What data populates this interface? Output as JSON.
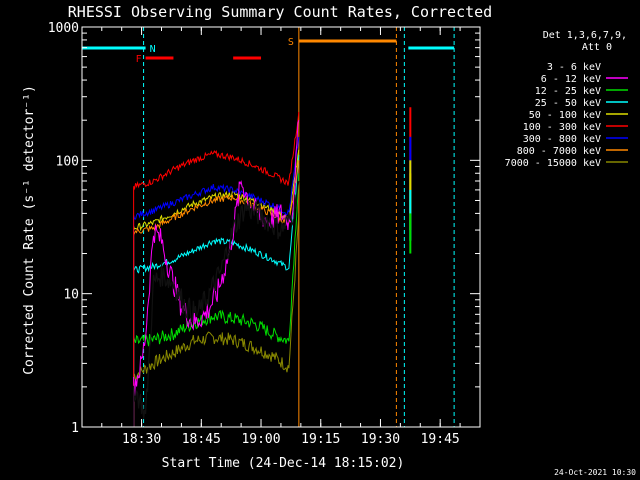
{
  "colors": {
    "bg": "#000000",
    "axis": "#ffffff",
    "band_3_6": "#000000",
    "band_6_12": "#ff00ff",
    "band_12_25": "#00dd00",
    "band_25_50": "#00ffff",
    "band_50_100": "#dddd00",
    "band_100_300": "#ff0000",
    "band_300_800": "#0000ff",
    "band_800_7000": "#ff8800",
    "band_7000_15000": "#888800"
  },
  "chart_data": {
    "type": "line",
    "title": "RHESSI Observing Summary Count Rates, Corrected",
    "xlabel": "Start Time (24-Dec-14 18:15:02)",
    "ylabel": "Corrected Count Rate (s⁻¹ detector⁻¹)",
    "y_scale": "log",
    "ylim": [
      1,
      1000
    ],
    "x_range": [
      "18:15:02",
      "19:55:00"
    ],
    "x_ticks": [
      "18:30",
      "18:45",
      "19:00",
      "19:15",
      "19:30",
      "19:45"
    ],
    "y_ticks": [
      "1",
      "10",
      "100",
      "1000"
    ],
    "legend": {
      "placement": "right",
      "header_lines": [
        "Det 1,3,6,7,9,",
        "Att 0"
      ]
    },
    "flag_markers": [
      {
        "label": "N",
        "color": "#00ffff",
        "spans": [
          [
            "18:15:02",
            "18:31:00"
          ],
          [
            "19:37:00",
            "19:48:30"
          ]
        ]
      },
      {
        "label": "F",
        "color": "#ff0000",
        "spans": [
          [
            "18:31:00",
            "18:38:00"
          ],
          [
            "18:53:00",
            "19:00:00"
          ]
        ]
      },
      {
        "label": "S",
        "color": "#ff8800",
        "spans": [
          [
            "19:09:30",
            "19:34:00"
          ]
        ]
      }
    ],
    "vlines": [
      {
        "time": "18:15:02",
        "color": "#00ffff",
        "style": "solid"
      },
      {
        "time": "18:30:30",
        "color": "#00ffff",
        "style": "dashed"
      },
      {
        "time": "19:09:30",
        "color": "#ff8800",
        "style": "solid"
      },
      {
        "time": "19:34:00",
        "color": "#ff8800",
        "style": "dashed"
      },
      {
        "time": "19:36:00",
        "color": "#00ffff",
        "style": "dashed"
      },
      {
        "time": "19:48:30",
        "color": "#00ffff",
        "style": "dashed"
      }
    ],
    "series": [
      {
        "name": "3 - 6 keV",
        "key": "band_3_6",
        "x": [
          "18:28:00",
          "18:30:00",
          "18:31:00",
          "18:33:00",
          "18:35:00",
          "18:38:00",
          "18:41:00",
          "18:44:00",
          "18:47:00",
          "18:50:00",
          "18:53:00",
          "18:56:00",
          "18:59:00",
          "19:02:00",
          "19:05:00",
          "19:07:00",
          "19:08:00",
          "19:09:30"
        ],
        "y": [
          2,
          1.5,
          1.2,
          12,
          14,
          12,
          8,
          7,
          10,
          15,
          30,
          45,
          40,
          35,
          30,
          35,
          40,
          70
        ]
      },
      {
        "name": "6 - 12 keV",
        "key": "band_6_12",
        "x": [
          "18:28:00",
          "18:30:00",
          "18:31:00",
          "18:33:00",
          "18:35:00",
          "18:37:00",
          "18:40:00",
          "18:43:00",
          "18:46:00",
          "18:49:00",
          "18:52:00",
          "18:55:00",
          "18:57:00",
          "18:59:00",
          "19:02:00",
          "19:05:00",
          "19:07:00",
          "19:08:00",
          "19:09:30"
        ],
        "y": [
          2,
          3,
          5,
          30,
          25,
          15,
          8,
          6,
          7,
          10,
          20,
          70,
          50,
          40,
          35,
          40,
          35,
          45,
          200
        ]
      },
      {
        "name": "12 - 25 keV",
        "key": "band_12_25",
        "x": [
          "18:28:00",
          "18:33:00",
          "18:38:00",
          "18:43:00",
          "18:48:00",
          "18:53:00",
          "18:58:00",
          "19:03:00",
          "19:07:00",
          "19:09:30"
        ],
        "y": [
          4.3,
          4.5,
          5,
          6,
          6.8,
          6.5,
          6,
          5,
          4.4,
          80
        ]
      },
      {
        "name": "25 - 50 keV",
        "key": "band_25_50",
        "x": [
          "18:28:00",
          "18:33:00",
          "18:38:00",
          "18:43:00",
          "18:48:00",
          "18:53:00",
          "18:58:00",
          "19:03:00",
          "19:07:00",
          "19:09:30"
        ],
        "y": [
          15,
          16,
          18,
          21,
          25,
          24,
          21,
          18,
          15.5,
          110
        ]
      },
      {
        "name": "50 - 100 keV",
        "key": "band_50_100",
        "x": [
          "18:28:00",
          "18:33:00",
          "18:38:00",
          "18:43:00",
          "18:48:00",
          "18:53:00",
          "18:58:00",
          "19:03:00",
          "19:07:00",
          "19:09:30"
        ],
        "y": [
          31,
          34,
          40,
          47,
          53,
          56,
          50,
          42,
          36,
          120
        ]
      },
      {
        "name": "100 - 300 keV",
        "key": "band_100_300",
        "x": [
          "18:28:00",
          "18:33:00",
          "18:38:00",
          "18:43:00",
          "18:48:00",
          "18:53:00",
          "18:58:00",
          "19:03:00",
          "19:07:00",
          "19:09:30"
        ],
        "y": [
          63,
          70,
          85,
          100,
          112,
          105,
          92,
          78,
          67,
          230
        ]
      },
      {
        "name": "300 - 800 keV",
        "key": "band_300_800",
        "x": [
          "18:28:00",
          "18:33:00",
          "18:38:00",
          "18:43:00",
          "18:48:00",
          "18:53:00",
          "18:58:00",
          "19:03:00",
          "19:07:00",
          "19:09:30"
        ],
        "y": [
          38,
          42,
          48,
          55,
          63,
          60,
          53,
          46,
          40,
          150
        ]
      },
      {
        "name": "800 - 7000 keV",
        "key": "band_800_7000",
        "x": [
          "18:28:00",
          "18:33:00",
          "18:38:00",
          "18:43:00",
          "18:48:00",
          "18:53:00",
          "18:58:00",
          "19:03:00",
          "19:07:00",
          "19:09:30"
        ],
        "y": [
          29,
          31,
          37,
          44,
          50,
          53,
          46,
          39,
          33,
          100
        ]
      },
      {
        "name": "7000 - 15000 keV",
        "key": "band_7000_15000",
        "x": [
          "18:28:00",
          "18:33:00",
          "18:38:00",
          "18:43:00",
          "18:48:00",
          "18:53:00",
          "18:58:00",
          "19:03:00",
          "19:07:00",
          "19:09:30"
        ],
        "y": [
          2.4,
          3.0,
          3.6,
          4.4,
          4.7,
          4.5,
          4.0,
          3.4,
          2.8,
          40
        ]
      }
    ],
    "after_gap": {
      "x": [
        "19:37:30",
        "19:38:00"
      ],
      "series_y": {
        "band_100_300": [
          250,
          80
        ],
        "band_300_800": [
          150,
          60
        ],
        "band_800_7000": [
          80,
          30
        ],
        "band_50_100": [
          100,
          40
        ],
        "band_25_50": [
          60,
          25
        ],
        "band_12_25": [
          40,
          20
        ]
      }
    }
  },
  "footer": {
    "date_stamp": "24-Oct-2021 10:30"
  }
}
